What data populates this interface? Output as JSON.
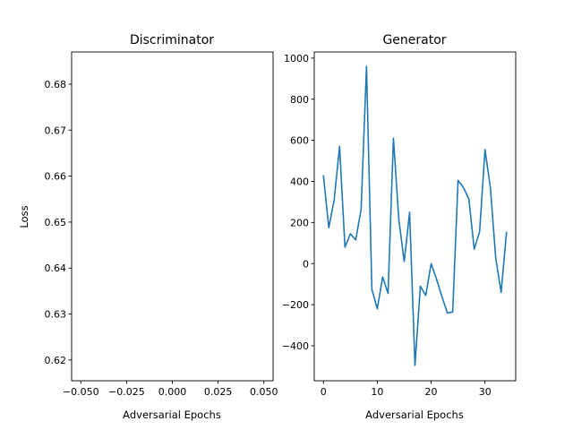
{
  "chart_data": [
    {
      "type": "line",
      "title": "Discriminator",
      "xlabel": "Adversarial Epochs",
      "ylabel": "Loss",
      "xlim": [
        -0.055,
        0.055
      ],
      "ylim": [
        0.6155,
        0.687
      ],
      "xticks": [
        -0.05,
        -0.025,
        0.0,
        0.025,
        0.05
      ],
      "xtick_labels": [
        "−0.050",
        "−0.025",
        "0.000",
        "0.025",
        "0.050"
      ],
      "yticks": [
        0.62,
        0.63,
        0.64,
        0.65,
        0.66,
        0.67,
        0.68
      ],
      "ytick_labels": [
        "0.62",
        "0.63",
        "0.64",
        "0.65",
        "0.66",
        "0.67",
        "0.68"
      ],
      "grid": false,
      "series": [
        {
          "color": "#1f77b4",
          "x": [],
          "y": []
        }
      ]
    },
    {
      "type": "line",
      "title": "Generator",
      "xlabel": "Adversarial Epochs",
      "ylabel": "",
      "xlim": [
        -1.7,
        35.7
      ],
      "ylim": [
        -570,
        1030
      ],
      "xticks": [
        0,
        10,
        20,
        30
      ],
      "xtick_labels": [
        "0",
        "10",
        "20",
        "30"
      ],
      "yticks": [
        -400,
        -200,
        0,
        200,
        400,
        600,
        800,
        1000
      ],
      "ytick_labels": [
        "−400",
        "−200",
        "0",
        "200",
        "400",
        "600",
        "800",
        "1000"
      ],
      "grid": false,
      "series": [
        {
          "color": "#1f77b4",
          "x": [
            0,
            1,
            2,
            3,
            4,
            5,
            6,
            7,
            8,
            9,
            10,
            11,
            12,
            13,
            14,
            15,
            16,
            17,
            18,
            19,
            20,
            21,
            22,
            23,
            24,
            25,
            26,
            27,
            28,
            29,
            30,
            31,
            32,
            33,
            34
          ],
          "y": [
            430,
            175,
            310,
            570,
            80,
            145,
            115,
            265,
            960,
            -125,
            -220,
            -65,
            -145,
            610,
            215,
            10,
            250,
            -495,
            -110,
            -155,
            0,
            -75,
            -160,
            -240,
            -235,
            405,
            370,
            315,
            70,
            155,
            555,
            370,
            25,
            -140,
            155
          ]
        }
      ]
    }
  ]
}
